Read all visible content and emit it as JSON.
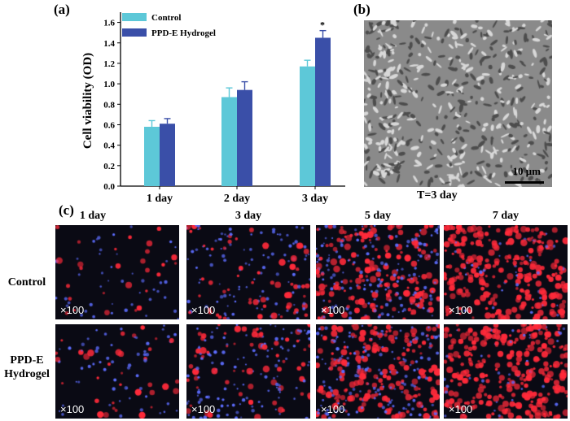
{
  "panels": {
    "a": "(a)",
    "b": "(b)",
    "c": "(c)"
  },
  "chart_data": {
    "type": "bar",
    "categories": [
      "1 day",
      "2 day",
      "3 day"
    ],
    "series": [
      {
        "name": "Control",
        "values": [
          0.58,
          0.87,
          1.17
        ],
        "errors": [
          0.06,
          0.09,
          0.06
        ],
        "color": "#5dc8d8"
      },
      {
        "name": "PPD-E Hydrogel",
        "values": [
          0.61,
          0.94,
          1.45
        ],
        "errors": [
          0.05,
          0.08,
          0.07
        ],
        "color": "#3a4fa8"
      }
    ],
    "ylabel": "Cell viability (OD)",
    "ylim": [
      0,
      1.7
    ],
    "yticks": [
      "0.0",
      "0.2",
      "0.4",
      "0.6",
      "0.8",
      "1.0",
      "1.2",
      "1.4",
      "1.6"
    ],
    "annotation": "*",
    "legend_position": "top-left",
    "grid": false
  },
  "micrograph": {
    "scale": "10 μm",
    "caption": "T=3 day"
  },
  "fluorescence": {
    "columns": [
      "1 day",
      "3 day",
      "5 day",
      "7 day"
    ],
    "rows": [
      "Control",
      "PPD-E\nHydrogel"
    ],
    "magnification": "×100"
  },
  "colors": {
    "red_stain": "#ff2a3a",
    "blue_stain": "#5d6dff"
  }
}
